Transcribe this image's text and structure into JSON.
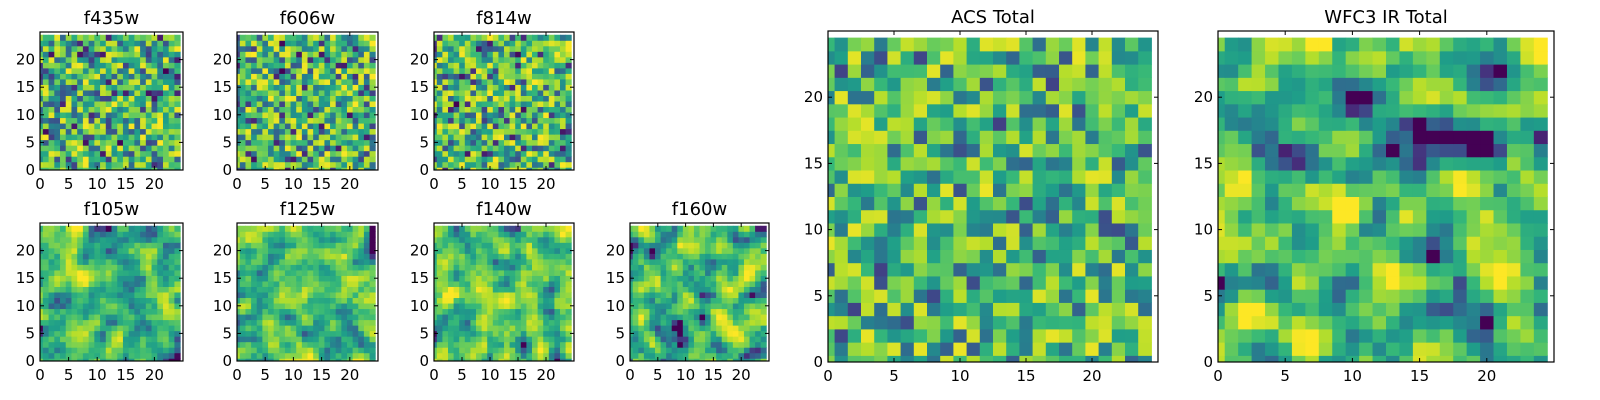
{
  "chart_data": [
    {
      "type": "heatmap",
      "title": "f435w",
      "xlim": [
        0,
        25
      ],
      "ylim": [
        0,
        25
      ],
      "xticks": [
        0,
        5,
        10,
        15,
        20
      ],
      "yticks": [
        0,
        5,
        10,
        15,
        20
      ],
      "xtick_labels": [
        "0",
        "5",
        "10",
        "15",
        "20"
      ],
      "ytick_labels": [
        "0",
        "5",
        "10",
        "15",
        "20"
      ],
      "grid_size": 24,
      "colormap": "viridis",
      "seed": 11,
      "smooth": 0,
      "contrast": 1.0
    },
    {
      "type": "heatmap",
      "title": "f606w",
      "xlim": [
        0,
        25
      ],
      "ylim": [
        0,
        25
      ],
      "xticks": [
        0,
        5,
        10,
        15,
        20
      ],
      "yticks": [
        0,
        5,
        10,
        15,
        20
      ],
      "xtick_labels": [
        "0",
        "5",
        "10",
        "15",
        "20"
      ],
      "ytick_labels": [
        "0",
        "5",
        "10",
        "15",
        "20"
      ],
      "grid_size": 24,
      "colormap": "viridis",
      "seed": 23,
      "smooth": 0,
      "contrast": 1.0
    },
    {
      "type": "heatmap",
      "title": "f814w",
      "xlim": [
        0,
        25
      ],
      "ylim": [
        0,
        25
      ],
      "xticks": [
        0,
        5,
        10,
        15,
        20
      ],
      "yticks": [
        0,
        5,
        10,
        15,
        20
      ],
      "xtick_labels": [
        "0",
        "5",
        "10",
        "15",
        "20"
      ],
      "ytick_labels": [
        "0",
        "5",
        "10",
        "15",
        "20"
      ],
      "grid_size": 24,
      "colormap": "viridis",
      "seed": 37,
      "smooth": 0,
      "contrast": 1.0
    },
    {
      "type": "heatmap",
      "title": "f105w",
      "xlim": [
        0,
        25
      ],
      "ylim": [
        0,
        25
      ],
      "xticks": [
        0,
        5,
        10,
        15,
        20
      ],
      "yticks": [
        0,
        5,
        10,
        15,
        20
      ],
      "xtick_labels": [
        "0",
        "5",
        "10",
        "15",
        "20"
      ],
      "ytick_labels": [
        "0",
        "5",
        "10",
        "15",
        "20"
      ],
      "grid_size": 24,
      "colormap": "viridis",
      "seed": 41,
      "smooth": 1,
      "contrast": 1.2
    },
    {
      "type": "heatmap",
      "title": "f125w",
      "xlim": [
        0,
        25
      ],
      "ylim": [
        0,
        25
      ],
      "xticks": [
        0,
        5,
        10,
        15,
        20
      ],
      "yticks": [
        0,
        5,
        10,
        15,
        20
      ],
      "xtick_labels": [
        "0",
        "5",
        "10",
        "15",
        "20"
      ],
      "ytick_labels": [
        "0",
        "5",
        "10",
        "15",
        "20"
      ],
      "grid_size": 24,
      "colormap": "viridis",
      "seed": 53,
      "smooth": 1,
      "contrast": 1.2
    },
    {
      "type": "heatmap",
      "title": "f140w",
      "xlim": [
        0,
        25
      ],
      "ylim": [
        0,
        25
      ],
      "xticks": [
        0,
        5,
        10,
        15,
        20
      ],
      "yticks": [
        0,
        5,
        10,
        15,
        20
      ],
      "xtick_labels": [
        "0",
        "5",
        "10",
        "15",
        "20"
      ],
      "ytick_labels": [
        "0",
        "5",
        "10",
        "15",
        "20"
      ],
      "grid_size": 24,
      "colormap": "viridis",
      "seed": 67,
      "smooth": 1,
      "contrast": 1.2
    },
    {
      "type": "heatmap",
      "title": "f160w",
      "xlim": [
        0,
        25
      ],
      "ylim": [
        0,
        25
      ],
      "xticks": [
        0,
        5,
        10,
        15,
        20
      ],
      "yticks": [
        0,
        5,
        10,
        15,
        20
      ],
      "xtick_labels": [
        "0",
        "5",
        "10",
        "15",
        "20"
      ],
      "ytick_labels": [
        "0",
        "5",
        "10",
        "15",
        "20"
      ],
      "grid_size": 24,
      "colormap": "viridis",
      "seed": 79,
      "smooth": 1,
      "contrast": 1.2
    },
    {
      "type": "heatmap",
      "title": "ACS Total",
      "xlim": [
        0,
        25
      ],
      "ylim": [
        0,
        25
      ],
      "xticks": [
        0,
        5,
        10,
        15,
        20
      ],
      "yticks": [
        0,
        5,
        10,
        15,
        20
      ],
      "xtick_labels": [
        "0",
        "5",
        "10",
        "15",
        "20"
      ],
      "ytick_labels": [
        "0",
        "5",
        "10",
        "15",
        "20"
      ],
      "grid_size": 24,
      "colormap": "viridis",
      "seed": 83,
      "smooth": 0,
      "contrast": 0.9
    },
    {
      "type": "heatmap",
      "title": "WFC3 IR Total",
      "xlim": [
        0,
        25
      ],
      "ylim": [
        0,
        25
      ],
      "xticks": [
        0,
        5,
        10,
        15,
        20
      ],
      "yticks": [
        0,
        5,
        10,
        15,
        20
      ],
      "xtick_labels": [
        "0",
        "5",
        "10",
        "15",
        "20"
      ],
      "ytick_labels": [
        "0",
        "5",
        "10",
        "15",
        "20"
      ],
      "grid_size": 24,
      "colormap": "viridis",
      "seed": 97,
      "smooth": 1,
      "contrast": 1.4
    }
  ]
}
